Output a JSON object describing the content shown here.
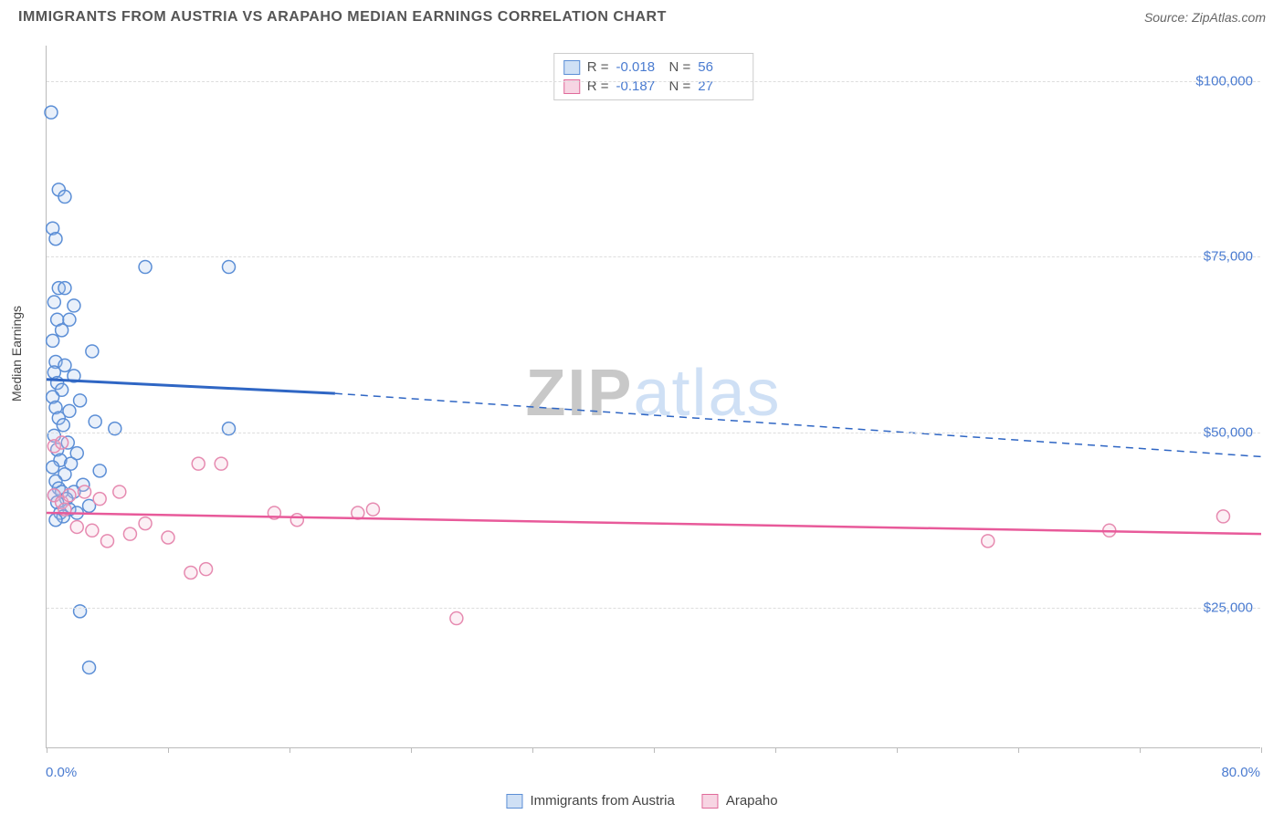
{
  "header": {
    "title": "IMMIGRANTS FROM AUSTRIA VS ARAPAHO MEDIAN EARNINGS CORRELATION CHART",
    "source_label": "Source:",
    "source_name": "ZipAtlas.com"
  },
  "chart": {
    "type": "scatter",
    "ylabel": "Median Earnings",
    "xlim": [
      0,
      80
    ],
    "ylim": [
      5000,
      105000
    ],
    "xticks_minor": [
      0,
      8,
      16,
      24,
      32,
      40,
      48,
      56,
      64,
      72,
      80
    ],
    "x_min_label": "0.0%",
    "x_max_label": "80.0%",
    "yticks": [
      {
        "value": 25000,
        "label": "$25,000"
      },
      {
        "value": 50000,
        "label": "$50,000"
      },
      {
        "value": 75000,
        "label": "$75,000"
      },
      {
        "value": 100000,
        "label": "$100,000"
      }
    ],
    "grid_color": "#dddddd",
    "background_color": "#ffffff",
    "marker_radius": 7,
    "marker_stroke_width": 1.5,
    "marker_fill_opacity": 0.25,
    "series": [
      {
        "key": "austria",
        "label": "Immigrants from Austria",
        "color_stroke": "#5b8ed6",
        "color_fill": "#a8c5ec",
        "swatch_border": "#5b8ed6",
        "swatch_fill": "#cfe0f5",
        "R": "-0.018",
        "N": "56",
        "trend": {
          "solid_x1": 0,
          "solid_y1": 57500,
          "solid_x2": 19,
          "solid_y2": 55500,
          "dash_x2": 80,
          "dash_y2": 46500,
          "stroke": "#2f66c4",
          "width": 3,
          "dash_width": 1.5
        },
        "points": [
          [
            0.3,
            95500
          ],
          [
            0.8,
            84500
          ],
          [
            1.2,
            83500
          ],
          [
            0.4,
            79000
          ],
          [
            0.6,
            77500
          ],
          [
            6.5,
            73500
          ],
          [
            12.0,
            73500
          ],
          [
            0.8,
            70500
          ],
          [
            1.2,
            70500
          ],
          [
            0.5,
            68500
          ],
          [
            1.8,
            68000
          ],
          [
            0.7,
            66000
          ],
          [
            1.5,
            66000
          ],
          [
            1.0,
            64500
          ],
          [
            0.4,
            63000
          ],
          [
            3.0,
            61500
          ],
          [
            0.6,
            60000
          ],
          [
            1.2,
            59500
          ],
          [
            0.5,
            58500
          ],
          [
            1.8,
            58000
          ],
          [
            0.7,
            57000
          ],
          [
            1.0,
            56000
          ],
          [
            0.4,
            55000
          ],
          [
            2.2,
            54500
          ],
          [
            0.6,
            53500
          ],
          [
            1.5,
            53000
          ],
          [
            0.8,
            52000
          ],
          [
            3.2,
            51500
          ],
          [
            1.1,
            51000
          ],
          [
            4.5,
            50500
          ],
          [
            12.0,
            50500
          ],
          [
            0.5,
            49500
          ],
          [
            1.4,
            48500
          ],
          [
            0.7,
            47500
          ],
          [
            2.0,
            47000
          ],
          [
            0.9,
            46000
          ],
          [
            1.6,
            45500
          ],
          [
            0.4,
            45000
          ],
          [
            3.5,
            44500
          ],
          [
            1.2,
            44000
          ],
          [
            0.6,
            43000
          ],
          [
            2.4,
            42500
          ],
          [
            0.8,
            42000
          ],
          [
            1.8,
            41500
          ],
          [
            1.0,
            41500
          ],
          [
            0.5,
            41000
          ],
          [
            1.3,
            40500
          ],
          [
            0.7,
            40000
          ],
          [
            2.8,
            39500
          ],
          [
            1.5,
            39000
          ],
          [
            0.9,
            38500
          ],
          [
            2.0,
            38500
          ],
          [
            1.1,
            38000
          ],
          [
            2.2,
            24500
          ],
          [
            2.8,
            16500
          ],
          [
            0.6,
            37500
          ]
        ]
      },
      {
        "key": "arapaho",
        "label": "Arapaho",
        "color_stroke": "#e68ab0",
        "color_fill": "#f4c2d6",
        "swatch_border": "#e06a9a",
        "swatch_fill": "#f7d5e3",
        "R": "-0.187",
        "N": "27",
        "trend": {
          "solid_x1": 0,
          "solid_y1": 38500,
          "solid_x2": 80,
          "solid_y2": 35500,
          "stroke": "#e85a9a",
          "width": 2.5
        },
        "points": [
          [
            0.5,
            48000
          ],
          [
            0.5,
            41000
          ],
          [
            1.0,
            40000
          ],
          [
            1.0,
            48500
          ],
          [
            1.5,
            41000
          ],
          [
            2.0,
            36500
          ],
          [
            2.5,
            41500
          ],
          [
            3.0,
            36000
          ],
          [
            3.5,
            40500
          ],
          [
            4.0,
            34500
          ],
          [
            4.8,
            41500
          ],
          [
            5.5,
            35500
          ],
          [
            6.5,
            37000
          ],
          [
            8.0,
            35000
          ],
          [
            9.5,
            30000
          ],
          [
            10.0,
            45500
          ],
          [
            11.5,
            45500
          ],
          [
            10.5,
            30500
          ],
          [
            15.0,
            38500
          ],
          [
            16.5,
            37500
          ],
          [
            20.5,
            38500
          ],
          [
            21.5,
            39000
          ],
          [
            27.0,
            23500
          ],
          [
            62.0,
            34500
          ],
          [
            70.0,
            36000
          ],
          [
            77.5,
            38000
          ],
          [
            1.2,
            39000
          ]
        ]
      }
    ],
    "stats_box": {
      "R_label": "R =",
      "N_label": "N ="
    },
    "watermark": {
      "zip": "ZIP",
      "rest": "atlas"
    }
  },
  "legend": {
    "items": [
      {
        "series": "austria"
      },
      {
        "series": "arapaho"
      }
    ]
  }
}
